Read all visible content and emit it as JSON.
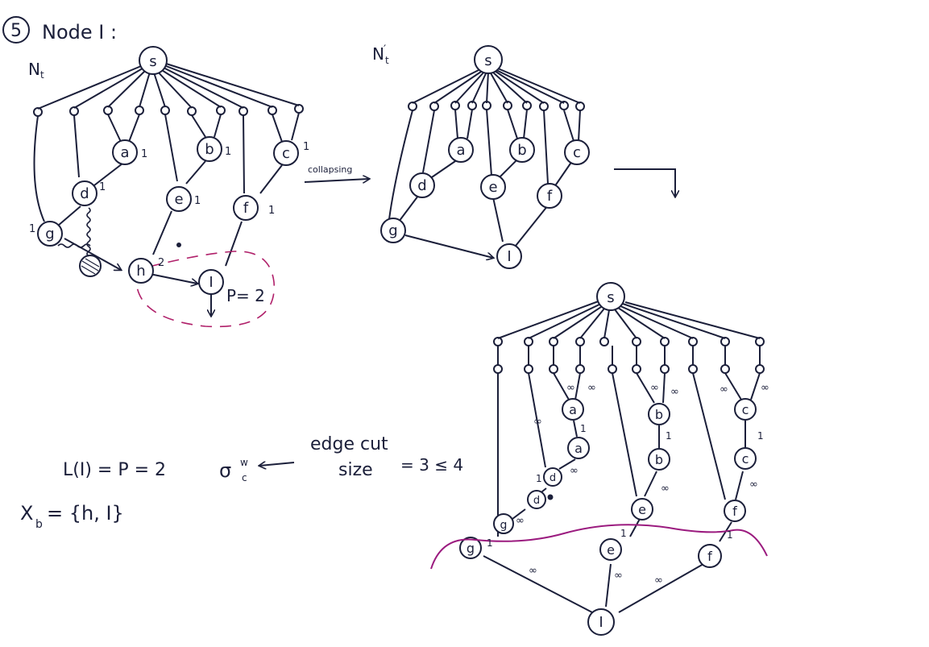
{
  "header": {
    "step_number": "5",
    "title": "Node I :"
  },
  "graph_nt": {
    "label": "N",
    "label_sub": "t",
    "nodes": {
      "s": "s",
      "a": "a",
      "b": "b",
      "c": "c",
      "d": "d",
      "e": "e",
      "f": "f",
      "g": "g",
      "h": "h",
      "I": "I"
    },
    "weights": {
      "a": "1",
      "b": "1",
      "c": "1",
      "d": "1",
      "e": "1",
      "f": "1",
      "g": "1",
      "h": "2"
    },
    "p_label": "P= 2"
  },
  "collapse_label": "collapsing",
  "graph_nt_prime": {
    "label": "N",
    "label_prime": "′",
    "label_sub": "t",
    "nodes": {
      "s": "s",
      "a": "a",
      "b": "b",
      "c": "c",
      "d": "d",
      "e": "e",
      "f": "f",
      "g": "g",
      "I": "I"
    }
  },
  "graph_split": {
    "nodes": {
      "s": "s",
      "a1": "a",
      "a2": "a",
      "b1": "b",
      "b2": "b",
      "c1": "c",
      "c2": "c",
      "d1": "d",
      "d2": "d",
      "e1": "e",
      "e2": "e",
      "f1": "f",
      "f2": "f",
      "g1": "g",
      "g2": "g",
      "I": "I"
    },
    "inf": "∞",
    "one": "1"
  },
  "result": {
    "edge_cut_line1": "edge cut",
    "edge_cut_line2": "size",
    "edge_cut_value": "= 3 ≤ 4",
    "sigma": "σ",
    "sigma_sup": "w",
    "sigma_sub": "c",
    "label_eq": "L(I) = P = 2",
    "x_set": "X",
    "x_sub": "b",
    "x_eq": "= {h, I}"
  }
}
